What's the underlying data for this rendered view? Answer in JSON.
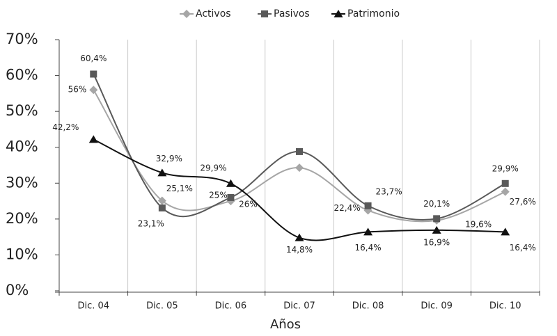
{
  "chart_data": {
    "type": "line",
    "x_label": "Años",
    "categories": [
      "Dic. 04",
      "Dic. 05",
      "Dic. 06",
      "Dic. 07",
      "Dic. 08",
      "Dic. 09",
      "Dic. 10"
    ],
    "series": [
      {
        "name": "Activos",
        "color": "#a6a6a6",
        "marker": "diamond",
        "values": [
          56,
          25.1,
          25,
          34.3,
          22.4,
          19.6,
          27.6
        ],
        "value_labels": [
          "56%",
          "25,1%",
          "25%",
          null,
          "22,4%",
          "19,6%",
          "27,6%"
        ]
      },
      {
        "name": "Pasivos",
        "color": "#595959",
        "marker": "square",
        "values": [
          60.4,
          23.1,
          26,
          38.8,
          23.7,
          20.1,
          29.9
        ],
        "value_labels": [
          "60,4%",
          "23,1%",
          "26%",
          null,
          "23,7%",
          "20,1%",
          "29,9%"
        ]
      },
      {
        "name": "Patrimonio",
        "color": "#111111",
        "marker": "triangle",
        "values": [
          42.2,
          32.9,
          29.9,
          14.8,
          16.4,
          16.9,
          16.4
        ],
        "value_labels": [
          "42,2%",
          "32,9%",
          "29,9%",
          "14,8%",
          "16,4%",
          "16,9%",
          "16,4%"
        ]
      }
    ],
    "ylim": [
      0,
      70
    ],
    "yticks": [
      {
        "value": 0,
        "label": "0%"
      },
      {
        "value": 10,
        "label": "10%"
      },
      {
        "value": 20,
        "label": "20%"
      },
      {
        "value": 30,
        "label": "30%"
      },
      {
        "value": 40,
        "label": "40%"
      },
      {
        "value": 50,
        "label": "50%"
      },
      {
        "value": 60,
        "label": "60%"
      },
      {
        "value": 70,
        "label": "70%"
      }
    ],
    "grid": "x",
    "legend": "top"
  }
}
